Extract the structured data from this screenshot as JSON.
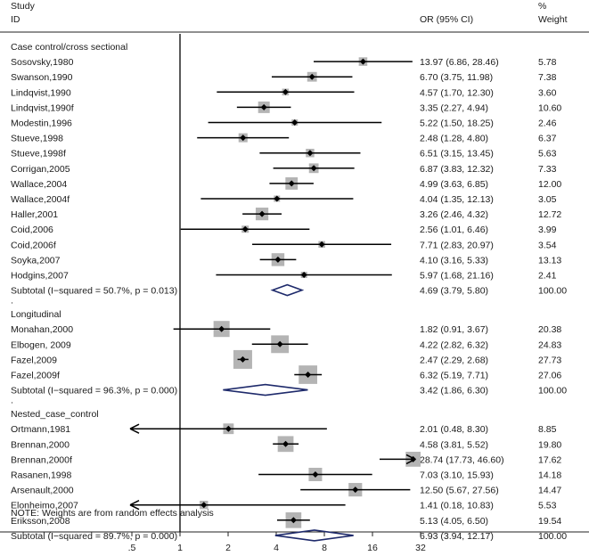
{
  "chart_data": {
    "type": "forest",
    "scale": "log",
    "header": {
      "study": "Study",
      "id": "ID",
      "or": "OR (95% CI)",
      "pct": "%",
      "weight": "Weight"
    },
    "x_ticks": [
      ".5",
      "1",
      "2",
      "4",
      "8",
      "16",
      "32"
    ],
    "x_tick_values": [
      0.5,
      1,
      2,
      4,
      8,
      16,
      32
    ],
    "null_value": 1,
    "note": "NOTE: Weights are from random effects analysis",
    "groups": [
      {
        "title": "Case control/cross sectional",
        "studies": [
          {
            "label": "Sosovsky,1980",
            "or": 13.97,
            "lo": 6.86,
            "hi": 28.46,
            "text": "13.97 (6.86, 28.46)",
            "weight": "5.78",
            "w": 5.78
          },
          {
            "label": "Swanson,1990",
            "or": 6.7,
            "lo": 3.75,
            "hi": 11.98,
            "text": "6.70 (3.75, 11.98)",
            "weight": "7.38",
            "w": 7.38
          },
          {
            "label": "Lindqvist,1990",
            "or": 4.57,
            "lo": 1.7,
            "hi": 12.3,
            "text": "4.57 (1.70, 12.30)",
            "weight": "3.60",
            "w": 3.6
          },
          {
            "label": "Lindqvist,1990f",
            "or": 3.35,
            "lo": 2.27,
            "hi": 4.94,
            "text": "3.35 (2.27, 4.94)",
            "weight": "10.60",
            "w": 10.6
          },
          {
            "label": "Modestin,1996",
            "or": 5.22,
            "lo": 1.5,
            "hi": 18.25,
            "text": "5.22 (1.50, 18.25)",
            "weight": "2.46",
            "w": 2.46
          },
          {
            "label": "Stueve,1998",
            "or": 2.48,
            "lo": 1.28,
            "hi": 4.8,
            "text": "2.48 (1.28, 4.80)",
            "weight": "6.37",
            "w": 6.37
          },
          {
            "label": "Stueve,1998f",
            "or": 6.51,
            "lo": 3.15,
            "hi": 13.45,
            "text": "6.51 (3.15, 13.45)",
            "weight": "5.63",
            "w": 5.63
          },
          {
            "label": "Corrigan,2005",
            "or": 6.87,
            "lo": 3.83,
            "hi": 12.32,
            "text": "6.87 (3.83, 12.32)",
            "weight": "7.33",
            "w": 7.33
          },
          {
            "label": "Wallace,2004",
            "or": 4.99,
            "lo": 3.63,
            "hi": 6.85,
            "text": "4.99 (3.63, 6.85)",
            "weight": "12.00",
            "w": 12.0
          },
          {
            "label": "Wallace,2004f",
            "or": 4.04,
            "lo": 1.35,
            "hi": 12.13,
            "text": "4.04 (1.35, 12.13)",
            "weight": "3.05",
            "w": 3.05
          },
          {
            "label": "Haller,2001",
            "or": 3.26,
            "lo": 2.46,
            "hi": 4.32,
            "text": "3.26 (2.46, 4.32)",
            "weight": "12.72",
            "w": 12.72
          },
          {
            "label": "Coid,2006",
            "or": 2.56,
            "lo": 1.01,
            "hi": 6.46,
            "text": "2.56 (1.01, 6.46)",
            "weight": "3.99",
            "w": 3.99
          },
          {
            "label": "Coid,2006f",
            "or": 7.71,
            "lo": 2.83,
            "hi": 20.97,
            "text": "7.71 (2.83, 20.97)",
            "weight": "3.54",
            "w": 3.54
          },
          {
            "label": "Soyka,2007",
            "or": 4.1,
            "lo": 3.16,
            "hi": 5.33,
            "text": "4.10 (3.16, 5.33)",
            "weight": "13.13",
            "w": 13.13
          },
          {
            "label": "Hodgins,2007",
            "or": 5.97,
            "lo": 1.68,
            "hi": 21.16,
            "text": "5.97 (1.68, 21.16)",
            "weight": "2.41",
            "w": 2.41
          }
        ],
        "subtotal": {
          "label": "Subtotal  (I−squared = 50.7%, p = 0.013)",
          "or": 4.69,
          "lo": 3.79,
          "hi": 5.8,
          "text": "4.69 (3.79, 5.80)",
          "weight": "100.00"
        }
      },
      {
        "title": "Longitudinal",
        "studies": [
          {
            "label": "Monahan,2000",
            "or": 1.82,
            "lo": 0.91,
            "hi": 3.67,
            "text": "1.82 (0.91, 3.67)",
            "weight": "20.38",
            "w": 20.38
          },
          {
            "label": "Elbogen, 2009",
            "or": 4.22,
            "lo": 2.82,
            "hi": 6.32,
            "text": "4.22 (2.82, 6.32)",
            "weight": "24.83",
            "w": 24.83
          },
          {
            "label": "Fazel,2009",
            "or": 2.47,
            "lo": 2.29,
            "hi": 2.68,
            "text": "2.47 (2.29, 2.68)",
            "weight": "27.73",
            "w": 27.73
          },
          {
            "label": "Fazel,2009f",
            "or": 6.32,
            "lo": 5.19,
            "hi": 7.71,
            "text": "6.32 (5.19, 7.71)",
            "weight": "27.06",
            "w": 27.06
          }
        ],
        "subtotal": {
          "label": "Subtotal  (I−squared = 96.3%, p = 0.000)",
          "or": 3.42,
          "lo": 1.86,
          "hi": 6.3,
          "text": "3.42 (1.86, 6.30)",
          "weight": "100.00"
        }
      },
      {
        "title": "Nested_case_control",
        "studies": [
          {
            "label": "Ortmann,1981",
            "or": 2.01,
            "lo": 0.48,
            "hi": 8.3,
            "text": "2.01 (0.48, 8.30)",
            "weight": "8.85",
            "w": 8.85
          },
          {
            "label": "Brennan,2000",
            "or": 4.58,
            "lo": 3.81,
            "hi": 5.52,
            "text": "4.58 (3.81, 5.52)",
            "weight": "19.80",
            "w": 19.8
          },
          {
            "label": "Brennan,2000f",
            "or": 28.74,
            "lo": 17.73,
            "hi": 46.6,
            "text": "28.74 (17.73, 46.60)",
            "weight": "17.62",
            "w": 17.62
          },
          {
            "label": "Rasanen,1998",
            "or": 7.03,
            "lo": 3.1,
            "hi": 15.93,
            "text": "7.03 (3.10, 15.93)",
            "weight": "14.18",
            "w": 14.18
          },
          {
            "label": "Arsenault,2000",
            "or": 12.5,
            "lo": 5.67,
            "hi": 27.56,
            "text": "12.50 (5.67, 27.56)",
            "weight": "14.47",
            "w": 14.47
          },
          {
            "label": "Elonheimo,2007",
            "or": 1.41,
            "lo": 0.18,
            "hi": 10.83,
            "text": "1.41 (0.18, 10.83)",
            "weight": "5.53",
            "w": 5.53
          },
          {
            "label": "Eriksson,2008",
            "or": 5.13,
            "lo": 4.05,
            "hi": 6.5,
            "text": "5.13 (4.05, 6.50)",
            "weight": "19.54",
            "w": 19.54
          }
        ],
        "subtotal": {
          "label": "Subtotal  (I−squared = 89.7%, p = 0.000)",
          "or": 6.93,
          "lo": 3.94,
          "hi": 12.17,
          "text": "6.93 (3.94, 12.17)",
          "weight": "100.00"
        }
      }
    ],
    "separator": "."
  },
  "colors": {
    "background": "#ffffff",
    "box": "#b4b4b4",
    "line": "#000000",
    "diamond": "#1e2a6b",
    "text": "#1a1a1a"
  }
}
